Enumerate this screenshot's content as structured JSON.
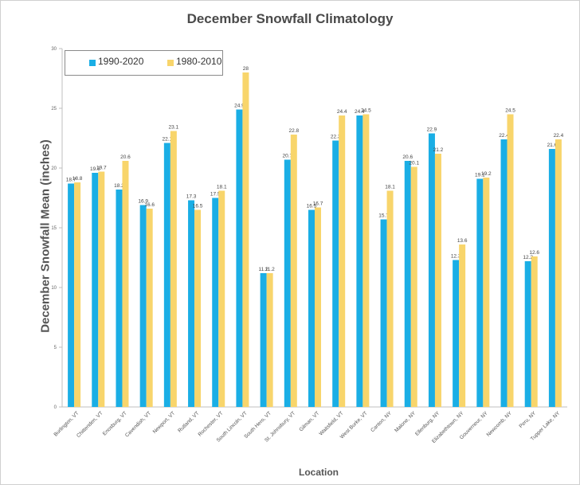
{
  "chart_data": {
    "type": "bar",
    "title": "December Snowfall Climatology",
    "xlabel": "Location",
    "ylabel": "December Snowfall Mean (inches)",
    "ylim": [
      0,
      30
    ],
    "yticks": [
      0,
      5,
      10,
      15,
      20,
      25,
      30
    ],
    "grid": false,
    "legend_position": "top-left",
    "categories": [
      "Burlington, VT",
      "Chittenden, VT",
      "Enosburg, VT",
      "Cavendish, VT",
      "Newport, VT",
      "Rutland, VT",
      "Rochester, VT",
      "South Lincoln, VT",
      "South Hero, VT",
      "St. Johnsbury, VT",
      "Gilman, VT",
      "Waitsfield, VT",
      "West Burke, VT",
      "Canton, NY",
      "Malone, NY",
      "Ellenburg, NY",
      "Elizabethtown, NY",
      "Gouverneur, NY",
      "Newcomb, NY",
      "Peru, NY",
      "Tupper Lake, NY"
    ],
    "series": [
      {
        "name": "1990-2020",
        "color": "#1aaee5",
        "values": [
          18.7,
          19.6,
          18.2,
          16.9,
          22.1,
          17.3,
          17.5,
          24.9,
          11.2,
          20.7,
          16.5,
          22.3,
          24.4,
          15.7,
          20.6,
          22.9,
          12.3,
          19.1,
          22.4,
          12.2,
          21.6
        ]
      },
      {
        "name": "1980-2010",
        "color": "#f8d56b",
        "values": [
          18.8,
          19.7,
          20.6,
          16.6,
          23.1,
          16.5,
          18.1,
          28,
          11.2,
          22.8,
          16.7,
          24.4,
          24.5,
          18.1,
          20.1,
          21.2,
          13.6,
          19.2,
          24.5,
          12.6,
          22.4
        ]
      }
    ]
  }
}
